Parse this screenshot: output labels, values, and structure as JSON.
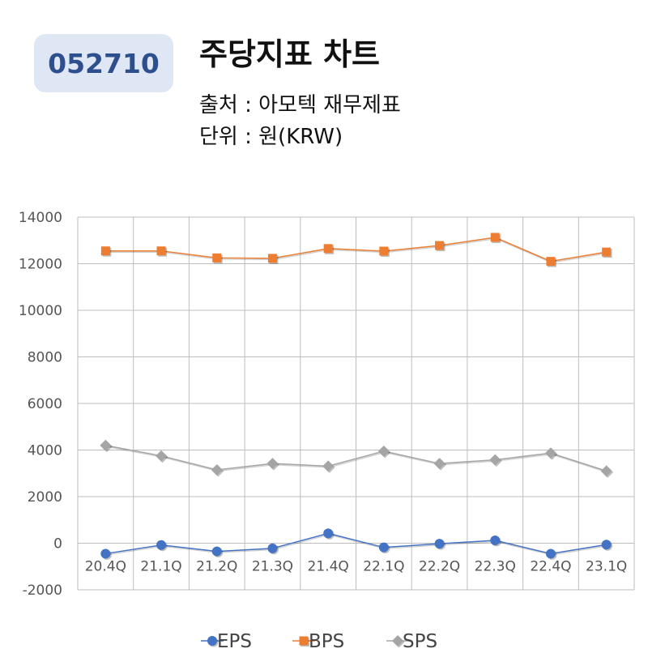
{
  "header": {
    "code": "052710",
    "title": "주당지표 차트",
    "source": "출처 : 아모텍 재무제표",
    "unit": "단위 : 원(KRW)"
  },
  "colors": {
    "badge_bg": "#dfe6f4",
    "badge_text": "#2e4f8e",
    "grid": "#bdbdbd",
    "eps": "#4472c4",
    "bps": "#ed7d31",
    "sps": "#a5a5a5"
  },
  "chart_data": {
    "type": "line",
    "categories": [
      "20.4Q",
      "21.1Q",
      "21.2Q",
      "21.3Q",
      "21.4Q",
      "22.1Q",
      "22.2Q",
      "22.3Q",
      "22.4Q",
      "23.1Q"
    ],
    "ylim": [
      -2000,
      14000
    ],
    "yticks": [
      -2000,
      0,
      2000,
      4000,
      6000,
      8000,
      10000,
      12000,
      14000
    ],
    "grid": true,
    "legend_position": "bottom",
    "series": [
      {
        "name": "EPS",
        "marker": "circle",
        "values": [
          -450,
          -80,
          -350,
          -220,
          420,
          -180,
          -20,
          120,
          -450,
          -60
        ]
      },
      {
        "name": "BPS",
        "marker": "square",
        "values": [
          12550,
          12550,
          12250,
          12230,
          12650,
          12540,
          12780,
          13130,
          12100,
          12500
        ]
      },
      {
        "name": "SPS",
        "marker": "diamond",
        "values": [
          4200,
          3750,
          3150,
          3420,
          3310,
          3950,
          3420,
          3580,
          3870,
          3100
        ]
      }
    ]
  }
}
